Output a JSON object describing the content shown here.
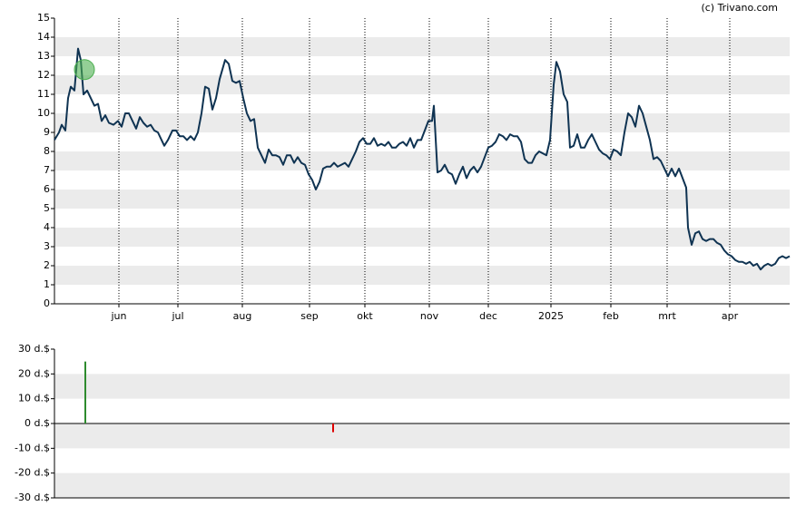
{
  "source": "(c) Trivano.com",
  "chart_data": [
    {
      "type": "line",
      "xlim": [
        0,
        405
      ],
      "ylim": [
        0,
        15
      ],
      "yticks": [
        0,
        1,
        2,
        3,
        4,
        5,
        6,
        7,
        8,
        9,
        10,
        11,
        12,
        13,
        14,
        15
      ],
      "xticks": [
        {
          "value": 35.5,
          "label": "jun"
        },
        {
          "value": 68,
          "label": "jul"
        },
        {
          "value": 103.5,
          "label": "aug"
        },
        {
          "value": 140.5,
          "label": "sep"
        },
        {
          "value": 171,
          "label": "okt"
        },
        {
          "value": 206.5,
          "label": "nov"
        },
        {
          "value": 239,
          "label": "dec"
        },
        {
          "value": 273.5,
          "label": "2025"
        },
        {
          "value": 306.5,
          "label": "feb"
        },
        {
          "value": 337.5,
          "label": "mrt"
        },
        {
          "value": 372,
          "label": "apr"
        }
      ],
      "grid": true,
      "x": [
        0,
        2.5,
        4,
        6,
        7.5,
        9,
        11,
        13,
        14.5,
        16,
        18,
        20,
        22,
        24,
        26,
        28,
        30,
        32.5,
        35,
        37,
        39,
        41,
        43,
        45,
        47,
        49,
        51,
        53,
        55,
        57,
        59,
        60.5,
        62.5,
        65,
        67,
        69,
        71,
        73,
        75,
        77,
        79,
        81,
        83,
        85,
        87,
        89,
        91,
        94,
        96,
        98,
        100,
        102,
        104,
        106,
        108,
        110,
        112,
        114,
        116,
        118,
        120,
        122,
        124,
        126,
        128,
        130,
        132,
        134,
        136,
        138,
        140,
        142,
        144,
        146,
        148,
        150,
        152,
        154,
        156,
        158,
        160,
        162,
        164,
        166,
        168,
        170,
        172,
        174,
        176,
        178,
        180,
        182,
        184,
        186,
        188,
        190,
        192,
        194,
        196,
        198,
        200,
        202,
        204,
        206,
        208,
        209,
        211,
        213,
        215,
        217,
        219,
        221,
        223,
        225,
        227,
        229,
        231,
        233,
        235,
        237,
        239,
        241,
        243,
        245,
        247,
        249,
        251,
        253,
        255,
        257,
        259,
        261,
        263,
        265,
        267,
        269,
        271,
        273,
        275,
        276.5,
        278.5,
        280.5,
        282.5,
        284,
        286,
        288,
        290,
        292,
        294,
        296,
        298,
        300,
        302,
        304,
        306,
        308,
        310,
        312,
        314,
        316,
        318,
        320,
        322,
        324,
        326,
        328,
        330,
        332,
        334,
        336,
        338,
        340,
        342,
        344,
        346,
        348,
        349,
        351,
        353,
        355,
        357,
        359,
        361,
        363,
        365,
        367,
        369,
        371,
        373,
        375,
        377,
        379,
        381,
        383,
        385,
        387,
        389,
        391,
        393,
        395,
        397,
        399,
        401,
        403,
        405
      ],
      "series": [
        {
          "color": "#0f3352",
          "values": [
            8.6,
            9.0,
            9.4,
            9.1,
            10.8,
            11.4,
            11.2,
            13.4,
            12.8,
            11.0,
            11.2,
            10.8,
            10.4,
            10.5,
            9.6,
            9.9,
            9.5,
            9.4,
            9.6,
            9.3,
            10.0,
            10.0,
            9.6,
            9.2,
            9.8,
            9.5,
            9.3,
            9.4,
            9.1,
            9.0,
            8.6,
            8.3,
            8.6,
            9.1,
            9.1,
            8.8,
            8.8,
            8.6,
            8.8,
            8.6,
            9.0,
            10.0,
            11.4,
            11.3,
            10.2,
            10.8,
            11.8,
            12.8,
            12.6,
            11.7,
            11.6,
            11.7,
            10.8,
            10.0,
            9.6,
            9.7,
            8.2,
            7.8,
            7.4,
            8.1,
            7.8,
            7.8,
            7.7,
            7.3,
            7.8,
            7.8,
            7.4,
            7.7,
            7.4,
            7.3,
            6.8,
            6.5,
            6.0,
            6.4,
            7.1,
            7.2,
            7.2,
            7.4,
            7.2,
            7.3,
            7.4,
            7.2,
            7.6,
            8.0,
            8.5,
            8.7,
            8.4,
            8.4,
            8.7,
            8.3,
            8.4,
            8.3,
            8.5,
            8.2,
            8.2,
            8.4,
            8.5,
            8.3,
            8.7,
            8.2,
            8.6,
            8.6,
            9.1,
            9.6,
            9.6,
            10.4,
            6.9,
            7.0,
            7.3,
            6.9,
            6.8,
            6.3,
            6.8,
            7.2,
            6.6,
            7.0,
            7.2,
            6.9,
            7.2,
            7.7,
            8.2,
            8.3,
            8.5,
            8.9,
            8.8,
            8.6,
            8.9,
            8.8,
            8.8,
            8.5,
            7.6,
            7.4,
            7.4,
            7.8,
            8.0,
            7.9,
            7.8,
            8.6,
            11.5,
            12.7,
            12.2,
            11.0,
            10.6,
            8.2,
            8.3,
            8.9,
            8.2,
            8.2,
            8.6,
            8.9,
            8.5,
            8.1,
            7.9,
            7.8,
            7.6,
            8.1,
            8.0,
            7.8,
            9.0,
            10.0,
            9.8,
            9.3,
            10.4,
            10.0,
            9.3,
            8.6,
            7.6,
            7.7,
            7.5,
            7.1,
            6.7,
            7.1,
            6.7,
            7.1,
            6.6,
            6.1,
            4.0,
            3.1,
            3.7,
            3.8,
            3.4,
            3.3,
            3.4,
            3.4,
            3.2,
            3.1,
            2.8,
            2.6,
            2.5,
            2.3,
            2.2,
            2.2,
            2.1,
            2.2,
            2.0,
            2.1,
            1.8,
            2.0,
            2.1,
            2.0,
            2.1,
            2.4,
            2.5,
            2.4,
            2.5
          ]
        }
      ],
      "markers": [
        {
          "x": 16.5,
          "y": 12.3,
          "color": "#4caf50"
        }
      ]
    },
    {
      "type": "bar",
      "xlim": [
        0,
        405
      ],
      "ylim": [
        -30,
        30
      ],
      "yticks": [
        {
          "value": 30,
          "label": "30 d.$"
        },
        {
          "value": 20,
          "label": "20 d.$"
        },
        {
          "value": 10,
          "label": "10 d.$"
        },
        {
          "value": 0,
          "label": "0 d.$"
        },
        {
          "value": -10,
          "label": "-10 d.$"
        },
        {
          "value": -20,
          "label": "-20 d.$"
        },
        {
          "value": -30,
          "label": "-30 d.$"
        }
      ],
      "grid": true,
      "x": [
        17,
        153.5
      ],
      "values": [
        25,
        -3.5
      ],
      "colors": [
        "#2e8b2e",
        "#dd0000"
      ]
    }
  ]
}
